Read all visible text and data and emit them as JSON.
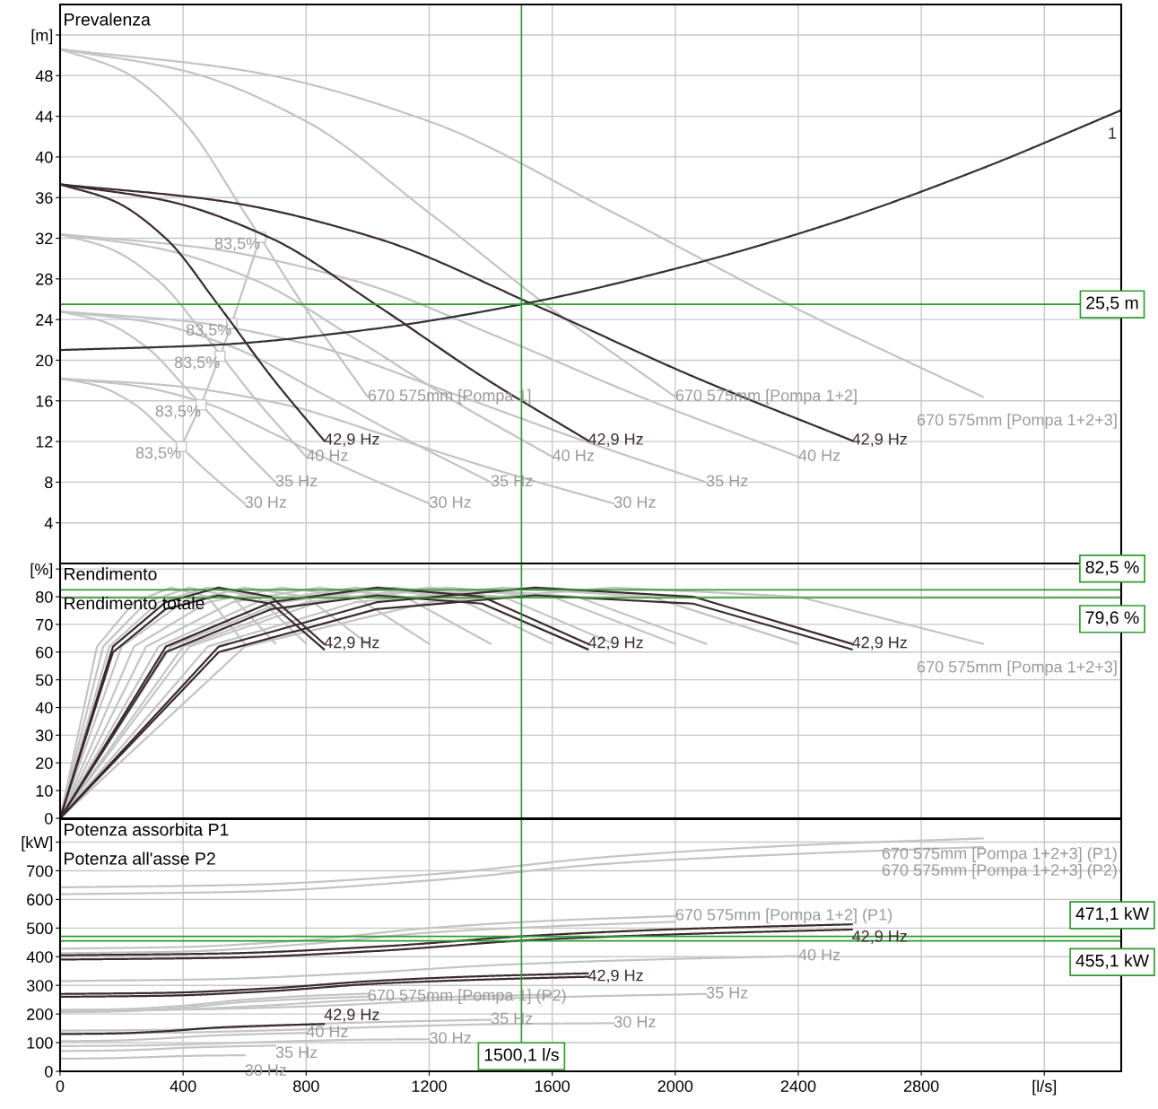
{
  "chart_data": [
    {
      "type": "line",
      "title": "Prevalenza",
      "xlim": [
        0,
        3450
      ],
      "ylim": [
        0,
        55
      ],
      "xticks": [
        0,
        400,
        800,
        1200,
        1600,
        2000,
        2400,
        2800,
        3200
      ],
      "yticks": [
        4,
        8,
        12,
        16,
        20,
        24,
        28,
        32,
        36,
        40,
        44,
        48,
        {
          "value": 52,
          "label": "[m]"
        }
      ],
      "tick_labels": "y",
      "grid": true,
      "legend": false,
      "series": [
        {
          "name": "670 575mm [Pompa 1]",
          "color": "#c4c4c4",
          "x": [
            0,
            200,
            400,
            600,
            800,
            1000
          ],
          "values": [
            50.6,
            48.5,
            43.5,
            34.5,
            25.0,
            16.4
          ]
        },
        {
          "name": "40 Hz",
          "color": "#c4c4c4",
          "x": [
            0,
            160,
            320,
            480,
            640,
            800
          ],
          "values": [
            32.4,
            31.0,
            27.8,
            22.1,
            16.0,
            10.5
          ]
        },
        {
          "name": "35 Hz",
          "color": "#c4c4c4",
          "x": [
            0,
            140,
            280,
            420,
            560,
            700
          ],
          "values": [
            24.8,
            23.8,
            21.3,
            16.9,
            12.3,
            8.0
          ]
        },
        {
          "name": "30 Hz",
          "color": "#c4c4c4",
          "x": [
            0,
            120,
            240,
            360,
            480,
            600
          ],
          "values": [
            18.2,
            17.5,
            15.7,
            12.4,
            9.0,
            5.9
          ]
        },
        {
          "name": "670 575mm [Pompa 1+2]",
          "color": "#c4c4c4",
          "x": [
            0,
            400,
            800,
            1200,
            1600,
            2000
          ],
          "values": [
            50.6,
            48.5,
            43.5,
            34.5,
            25.0,
            16.4
          ]
        },
        {
          "name": "40 Hz",
          "color": "#c4c4c4",
          "x": [
            0,
            320,
            640,
            960,
            1280,
            1600
          ],
          "values": [
            32.4,
            31.0,
            27.8,
            22.1,
            16.0,
            10.5
          ]
        },
        {
          "name": "35 Hz",
          "color": "#c4c4c4",
          "x": [
            0,
            280,
            560,
            840,
            1120,
            1400
          ],
          "values": [
            24.8,
            23.8,
            21.3,
            16.9,
            12.3,
            8.0
          ]
        },
        {
          "name": "30 Hz",
          "color": "#c4c4c4",
          "x": [
            0,
            240,
            480,
            720,
            960,
            1200
          ],
          "values": [
            18.2,
            17.5,
            15.7,
            12.4,
            9.0,
            5.9
          ]
        },
        {
          "name": "670 575mm [Pompa 1+2+3]",
          "color": "#c4c4c4",
          "x": [
            0,
            600,
            1200,
            1800,
            2400,
            3000
          ],
          "values": [
            50.6,
            48.5,
            43.5,
            34.5,
            25.0,
            16.4
          ]
        },
        {
          "name": "40 Hz",
          "color": "#c4c4c4",
          "x": [
            0,
            480,
            960,
            1440,
            1920,
            2400
          ],
          "values": [
            32.4,
            31.0,
            27.8,
            22.1,
            16.0,
            10.5
          ]
        },
        {
          "name": "35 Hz",
          "color": "#c4c4c4",
          "x": [
            0,
            420,
            840,
            1260,
            1680,
            2100
          ],
          "values": [
            24.8,
            23.8,
            21.3,
            16.9,
            12.3,
            8.0
          ]
        },
        {
          "name": "30 Hz",
          "color": "#c4c4c4",
          "x": [
            0,
            360,
            720,
            1080,
            1440,
            1800
          ],
          "values": [
            18.2,
            17.5,
            15.7,
            12.4,
            9.0,
            5.9
          ]
        },
        {
          "color": "#c4c4c4",
          "marker": "square",
          "x": [
            651,
            558,
            520,
            458,
            394
          ],
          "values": [
            32.1,
            23.6,
            20.4,
            15.6,
            11.5
          ]
        },
        {
          "name": "42,9 Hz",
          "color": "#3b2b30",
          "x": [
            0,
            172,
            343,
            515,
            686,
            858
          ],
          "values": [
            37.3,
            35.7,
            32.0,
            25.4,
            18.4,
            12.1
          ]
        },
        {
          "name": "42,9 Hz",
          "color": "#3b2b30",
          "x": [
            0,
            344,
            686,
            1030,
            1372,
            1716
          ],
          "values": [
            37.3,
            35.7,
            32.0,
            25.4,
            18.4,
            12.1
          ]
        },
        {
          "name": "42,9 Hz",
          "color": "#3b2b30",
          "x": [
            0,
            516,
            1029,
            1545,
            2058,
            2574
          ],
          "values": [
            37.3,
            35.7,
            32.0,
            25.4,
            18.4,
            12.1
          ]
        },
        {
          "name": "1",
          "color": "#333333",
          "x": [
            0,
            500,
            1000,
            1500,
            2000,
            2500,
            3000,
            3450
          ],
          "values": [
            21.0,
            21.5,
            23.0,
            25.5,
            29.0,
            33.4,
            38.9,
            44.6
          ]
        }
      ],
      "annotations": [
        {
          "text": "83,5%",
          "x": 651,
          "y": 32.1
        },
        {
          "text": "83,5%",
          "x": 558,
          "y": 23.6
        },
        {
          "text": "83,5%",
          "x": 520,
          "y": 20.4
        },
        {
          "text": "83,5%",
          "x": 458,
          "y": 15.6
        },
        {
          "text": "83,5%",
          "x": 394,
          "y": 11.5
        }
      ],
      "ref_lines": [
        {
          "axis": "y",
          "value": 25.5,
          "label": "25,5 m",
          "color": "#2e9a2e"
        },
        {
          "axis": "x",
          "value": 1500.1,
          "color": "#2e9a2e"
        }
      ]
    },
    {
      "type": "line",
      "title": "Rendimento",
      "subtitle": "Rendimento totale",
      "xlim": [
        0,
        3450
      ],
      "ylim": [
        0,
        92
      ],
      "xticks": [
        0,
        400,
        800,
        1200,
        1600,
        2000,
        2400,
        2800,
        3200
      ],
      "yticks": [
        0,
        10,
        20,
        30,
        40,
        50,
        60,
        70,
        80,
        {
          "value": 90,
          "label": "[%]"
        }
      ],
      "tick_labels": "y",
      "grid": true,
      "legend": false,
      "series": [
        {
          "color": "#c4c4c4",
          "x": [
            0,
            200,
            400,
            600,
            800,
            1000
          ],
          "values": [
            0,
            62,
            78,
            83.3,
            80,
            63
          ]
        },
        {
          "color": "#c4c4c4",
          "x": [
            0,
            160,
            320,
            480,
            640,
            800
          ],
          "values": [
            0,
            62,
            78,
            83.3,
            80,
            63
          ]
        },
        {
          "color": "#c4c4c4",
          "x": [
            0,
            140,
            280,
            420,
            560,
            700
          ],
          "values": [
            0,
            62,
            78,
            83.3,
            80,
            63
          ]
        },
        {
          "color": "#c4c4c4",
          "x": [
            0,
            120,
            240,
            360,
            480,
            600
          ],
          "values": [
            0,
            62,
            78,
            83.3,
            80,
            63
          ]
        },
        {
          "color": "#c4c4c4",
          "x": [
            0,
            400,
            800,
            1200,
            1600,
            2000
          ],
          "values": [
            0,
            62,
            78,
            83.3,
            80,
            63
          ]
        },
        {
          "color": "#c4c4c4",
          "x": [
            0,
            320,
            640,
            960,
            1280,
            1600
          ],
          "values": [
            0,
            62,
            78,
            83.3,
            80,
            63
          ]
        },
        {
          "color": "#c4c4c4",
          "x": [
            0,
            280,
            560,
            840,
            1120,
            1400
          ],
          "values": [
            0,
            62,
            78,
            83.3,
            80,
            63
          ]
        },
        {
          "color": "#c4c4c4",
          "x": [
            0,
            240,
            480,
            720,
            960,
            1200
          ],
          "values": [
            0,
            62,
            78,
            83.3,
            80,
            63
          ]
        },
        {
          "name": "670 575mm [Pompa 1+2+3]",
          "color": "#c4c4c4",
          "x": [
            0,
            600,
            1200,
            1800,
            2400,
            3000
          ],
          "values": [
            0,
            62,
            78,
            83.3,
            80,
            63
          ]
        },
        {
          "color": "#c4c4c4",
          "x": [
            0,
            480,
            960,
            1440,
            1920,
            2400
          ],
          "values": [
            0,
            62,
            78,
            83.3,
            80,
            63
          ]
        },
        {
          "color": "#c4c4c4",
          "x": [
            0,
            420,
            840,
            1260,
            1680,
            2100
          ],
          "values": [
            0,
            62,
            78,
            83.3,
            80,
            63
          ]
        },
        {
          "color": "#c4c4c4",
          "x": [
            0,
            360,
            720,
            1080,
            1440,
            1800
          ],
          "values": [
            0,
            62,
            78,
            83.3,
            80,
            63
          ]
        },
        {
          "name": "42,9 Hz",
          "color": "#3b2b30",
          "x": [
            0,
            172,
            343,
            515,
            686,
            858
          ],
          "values": [
            0,
            62,
            78,
            83.3,
            80,
            63
          ]
        },
        {
          "color": "#3b2b30",
          "x": [
            0,
            172,
            343,
            515,
            686,
            858
          ],
          "values": [
            0,
            60,
            75.5,
            80.5,
            77.5,
            61
          ]
        },
        {
          "name": "42,9 Hz",
          "color": "#3b2b30",
          "x": [
            0,
            344,
            686,
            1030,
            1372,
            1716
          ],
          "values": [
            0,
            62,
            78,
            83.3,
            80,
            63
          ]
        },
        {
          "color": "#3b2b30",
          "x": [
            0,
            344,
            686,
            1030,
            1372,
            1716
          ],
          "values": [
            0,
            60,
            75.5,
            80.5,
            77.5,
            61
          ]
        },
        {
          "name": "42,9 Hz",
          "color": "#3b2b30",
          "x": [
            0,
            516,
            1029,
            1545,
            2058,
            2574
          ],
          "values": [
            0,
            62,
            78,
            83.3,
            80,
            63
          ]
        },
        {
          "color": "#3b2b30",
          "x": [
            0,
            516,
            1029,
            1545,
            2058,
            2574
          ],
          "values": [
            0,
            60,
            75.5,
            80.5,
            77.5,
            61
          ]
        }
      ],
      "ref_lines": [
        {
          "axis": "y",
          "value": 82.5,
          "label": "82,5 %",
          "color": "#2e9a2e"
        },
        {
          "axis": "y",
          "value": 79.6,
          "label": "79,6 %",
          "color": "#2e9a2e"
        },
        {
          "axis": "x",
          "value": 1500.1,
          "color": "#2e9a2e"
        }
      ]
    },
    {
      "type": "line",
      "title": "Potenza assorbita P1",
      "subtitle": "Potenza all'asse P2",
      "xlim": [
        0,
        3450
      ],
      "ylim": [
        0,
        880
      ],
      "xticks": [
        0,
        400,
        800,
        1200,
        1600,
        2000,
        2400,
        2800,
        {
          "value": 3200,
          "label": "[l/s]"
        }
      ],
      "yticks": [
        0,
        100,
        200,
        300,
        400,
        500,
        600,
        700,
        {
          "value": 800,
          "label": "[kW]"
        }
      ],
      "grid": true,
      "legend": false,
      "series": [
        {
          "name": "670 575mm [Pompa 1] (P2)",
          "color": "#c4c4c4",
          "x": [
            0,
            200,
            400,
            600,
            800,
            1000
          ],
          "values": [
            206,
            209,
            222,
            242,
            253,
            261
          ]
        },
        {
          "color": "#c4c4c4",
          "x": [
            0,
            200,
            400,
            600,
            800,
            1000
          ],
          "values": [
            214,
            217,
            229,
            250,
            263,
            271
          ]
        },
        {
          "name": "40 Hz",
          "color": "#c4c4c4",
          "x": [
            0,
            160,
            320,
            480,
            640,
            800
          ],
          "values": [
            105,
            107,
            114,
            124,
            130,
            134
          ]
        },
        {
          "name": "35 Hz",
          "color": "#c4c4c4",
          "x": [
            0,
            140,
            280,
            420,
            560,
            700
          ],
          "values": [
            71,
            72,
            76,
            83,
            87,
            90
          ]
        },
        {
          "name": "30 Hz",
          "color": "#c4c4c4",
          "x": [
            0,
            120,
            240,
            360,
            480,
            600
          ],
          "values": [
            44,
            45,
            48,
            52,
            55,
            56
          ]
        },
        {
          "color": "#c4c4c4",
          "x": [
            0,
            400,
            800,
            1200,
            1600,
            2000
          ],
          "values": [
            412,
            418,
            444,
            484,
            506,
            522
          ]
        },
        {
          "name": "670 575mm [Pompa 1+2] (P1)",
          "color": "#c4c4c4",
          "x": [
            0,
            400,
            800,
            1200,
            1600,
            2000
          ],
          "values": [
            428,
            434,
            458,
            500,
            526,
            542
          ]
        },
        {
          "color": "#c4c4c4",
          "x": [
            0,
            320,
            640,
            960,
            1280,
            1600
          ],
          "values": [
            210,
            214,
            228,
            248,
            260,
            268
          ]
        },
        {
          "name": "35 Hz",
          "color": "#c4c4c4",
          "x": [
            0,
            280,
            560,
            840,
            1120,
            1400
          ],
          "values": [
            142,
            144,
            152,
            166,
            174,
            180
          ]
        },
        {
          "name": "30 Hz",
          "color": "#c4c4c4",
          "x": [
            0,
            240,
            480,
            720,
            960,
            1200
          ],
          "values": [
            88,
            90,
            96,
            104,
            110,
            112
          ]
        },
        {
          "name": "670 575mm [Pompa 1+2+3] (P2)",
          "color": "#c4c4c4",
          "x": [
            0,
            600,
            1200,
            1800,
            2400,
            3000
          ],
          "values": [
            618,
            627,
            666,
            726,
            759,
            783
          ]
        },
        {
          "name": "670 575mm [Pompa 1+2+3] (P1)",
          "color": "#c4c4c4",
          "x": [
            0,
            600,
            1200,
            1800,
            2400,
            3000
          ],
          "values": [
            642,
            651,
            687,
            750,
            789,
            813
          ]
        },
        {
          "name": "40 Hz",
          "color": "#c4c4c4",
          "x": [
            0,
            480,
            960,
            1440,
            1920,
            2400
          ],
          "values": [
            315,
            321,
            342,
            372,
            390,
            402
          ]
        },
        {
          "name": "35 Hz",
          "color": "#c4c4c4",
          "x": [
            0,
            420,
            840,
            1260,
            1680,
            2100
          ],
          "values": [
            213,
            216,
            228,
            249,
            261,
            270
          ]
        },
        {
          "name": "30 Hz",
          "color": "#c4c4c4",
          "x": [
            0,
            360,
            720,
            1080,
            1440,
            1800
          ],
          "values": [
            132,
            135,
            144,
            156,
            165,
            168
          ]
        },
        {
          "name": "42,9 Hz",
          "color": "#3b2b30",
          "x": [
            0,
            172,
            343,
            515,
            686,
            858
          ],
          "values": [
            130,
            132,
            140,
            153,
            160,
            165
          ]
        },
        {
          "name": "42,9 Hz",
          "color": "#3b2b30",
          "x": [
            0,
            344,
            686,
            1030,
            1372,
            1716
          ],
          "values": [
            260,
            264,
            280,
            306,
            320,
            330
          ]
        },
        {
          "color": "#3b2b30",
          "x": [
            0,
            344,
            686,
            1030,
            1372,
            1716
          ],
          "values": [
            270,
            274,
            290,
            316,
            332,
            342
          ]
        },
        {
          "name": "42,9 Hz",
          "color": "#3b2b30",
          "x": [
            0,
            516,
            1029,
            1545,
            2058,
            2574
          ],
          "values": [
            390,
            396,
            420,
            459,
            480,
            495
          ]
        },
        {
          "color": "#3b2b30",
          "x": [
            0,
            516,
            1029,
            1545,
            2058,
            2574
          ],
          "values": [
            405,
            411,
            435,
            474,
            498,
            513
          ]
        }
      ],
      "ref_lines": [
        {
          "axis": "y",
          "value": 471.1,
          "label": "471,1 kW",
          "color": "#2e9a2e"
        },
        {
          "axis": "y",
          "value": 455.1,
          "label": "455,1 kW",
          "color": "#2e9a2e"
        },
        {
          "axis": "x",
          "value": 1500.1,
          "label": "1500,1 l/s",
          "color": "#2e9a2e"
        }
      ]
    }
  ]
}
